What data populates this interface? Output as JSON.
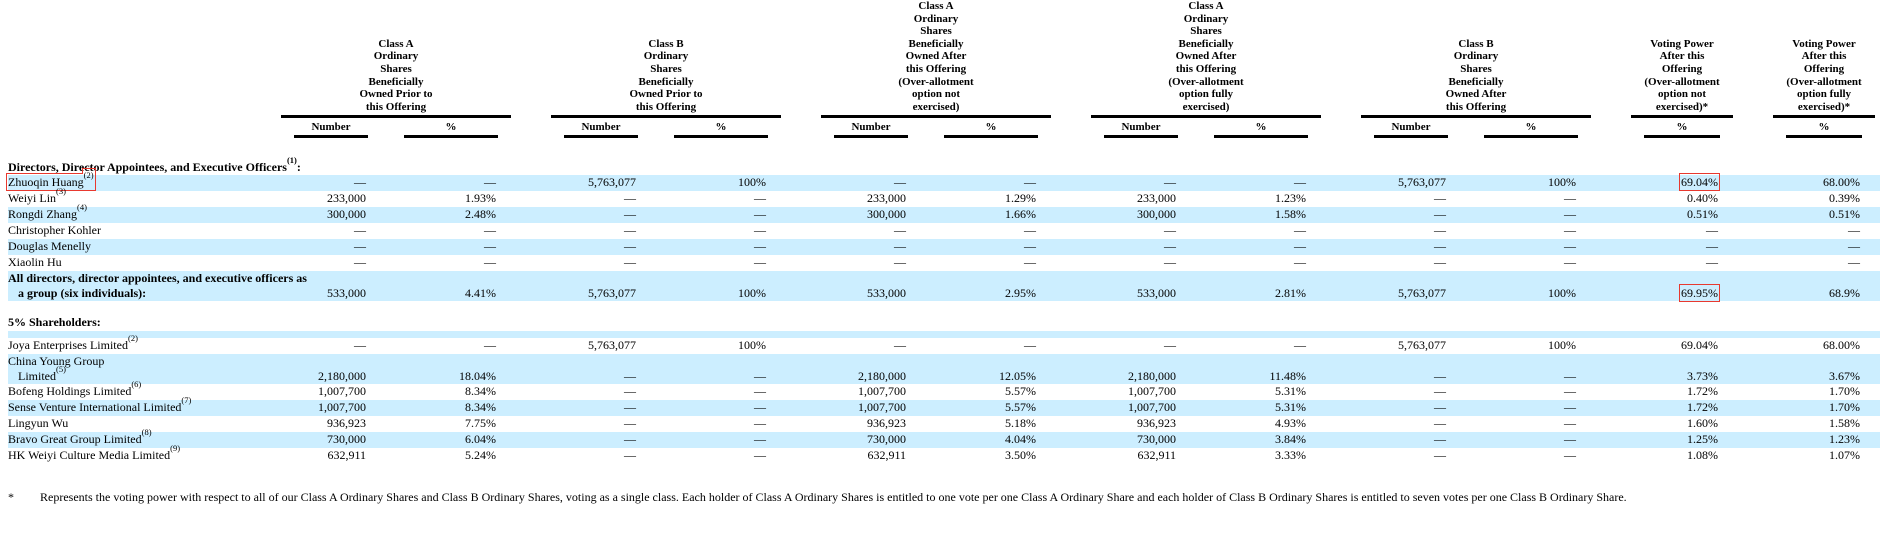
{
  "colors": {
    "row_highlight": "#cceeff",
    "annotation_red": "#e8392f",
    "rule": "#000000",
    "text": "#000000"
  },
  "table": {
    "groups": [
      {
        "title": "Class A\nOrdinary\nShares\nBeneficially\nOwned Prior to\nthis Offering",
        "cols": [
          "Number",
          "%"
        ]
      },
      {
        "title": "Class B\nOrdinary\nShares\nBeneficially\nOwned Prior to\nthis Offering",
        "cols": [
          "Number",
          "%"
        ]
      },
      {
        "title": "Class A\nOrdinary\nShares\nBeneficially\nOwned After\nthis Offering\n(Over-allotment\noption not\nexercised)",
        "cols": [
          "Number",
          "%"
        ]
      },
      {
        "title": "Class A\nOrdinary\nShares\nBeneficially\nOwned After\nthis Offering\n(Over-allotment\noption fully\nexercised)",
        "cols": [
          "Number",
          "%"
        ]
      },
      {
        "title": "Class B\nOrdinary\nShares\nBeneficially\nOwned After\nthis Offering",
        "cols": [
          "Number",
          "%"
        ]
      },
      {
        "title": "Voting Power\nAfter this\nOffering\n(Over-allotment\noption not\nexercised)*",
        "cols": [
          "%"
        ]
      },
      {
        "title": "Voting Power\nAfter this\nOffering\n(Over-allotment\noption fully\nexercised)*",
        "cols": [
          "%"
        ]
      }
    ],
    "rows": [
      {
        "type": "section",
        "label": "Directors, Director Appointees, and Executive Officers",
        "sup": "(1)",
        "suffix": ":"
      },
      {
        "type": "data",
        "label": "Zhuoqin Huang",
        "sup": "(2)",
        "highlight": true,
        "label_boxed": true,
        "boxed_values": [
          10
        ],
        "values": [
          "—",
          "—",
          "5,763,077",
          "100%",
          "—",
          "—",
          "—",
          "—",
          "5,763,077",
          "100%",
          "69.04%",
          "68.00%"
        ]
      },
      {
        "type": "data",
        "label": "Weiyi Lin",
        "sup": "(3)",
        "values": [
          "233,000",
          "1.93%",
          "—",
          "—",
          "233,000",
          "1.29%",
          "233,000",
          "1.23%",
          "—",
          "—",
          "0.40%",
          "0.39%"
        ]
      },
      {
        "type": "data",
        "label": "Rongdi Zhang",
        "sup": "(4)",
        "highlight": true,
        "values": [
          "300,000",
          "2.48%",
          "—",
          "—",
          "300,000",
          "1.66%",
          "300,000",
          "1.58%",
          "—",
          "—",
          "0.51%",
          "0.51%"
        ]
      },
      {
        "type": "data",
        "label": "Christopher Kohler",
        "values": [
          "—",
          "—",
          "—",
          "—",
          "—",
          "—",
          "—",
          "—",
          "—",
          "—",
          "—",
          "—"
        ]
      },
      {
        "type": "data",
        "label": "Douglas Menelly",
        "highlight": true,
        "values": [
          "—",
          "—",
          "—",
          "—",
          "—",
          "—",
          "—",
          "—",
          "—",
          "—",
          "—",
          "—"
        ]
      },
      {
        "type": "data",
        "label": "Xiaolin Hu",
        "values": [
          "—",
          "—",
          "—",
          "—",
          "—",
          "—",
          "—",
          "—",
          "—",
          "—",
          "—",
          "—"
        ]
      },
      {
        "type": "data",
        "label_lines": [
          "All directors, director appointees, and executive officers as",
          "a group (six individuals):"
        ],
        "bold": true,
        "highlight": true,
        "boxed_values": [
          10
        ],
        "values": [
          "533,000",
          "4.41%",
          "5,763,077",
          "100%",
          "533,000",
          "2.95%",
          "533,000",
          "2.81%",
          "5,763,077",
          "100%",
          "69.95%",
          "68.9%"
        ]
      },
      {
        "type": "spacer",
        "height": 14
      },
      {
        "type": "section",
        "label": "5% Shareholders",
        "suffix": ":"
      },
      {
        "type": "spacer",
        "height": 7,
        "highlight": true
      },
      {
        "type": "data",
        "label": "Joya Enterprises Limited",
        "sup": "(2)",
        "values": [
          "—",
          "—",
          "5,763,077",
          "100%",
          "—",
          "—",
          "—",
          "—",
          "5,763,077",
          "100%",
          "69.04%",
          "68.00%"
        ]
      },
      {
        "type": "data",
        "label_lines": [
          "China Young Group",
          "Limited"
        ],
        "sup": "(5)",
        "highlight": true,
        "values": [
          "2,180,000",
          "18.04%",
          "—",
          "—",
          "2,180,000",
          "12.05%",
          "2,180,000",
          "11.48%",
          "—",
          "—",
          "3.73%",
          "3.67%"
        ]
      },
      {
        "type": "data",
        "label": "Bofeng Holdings Limited",
        "sup": "(6)",
        "values": [
          "1,007,700",
          "8.34%",
          "—",
          "—",
          "1,007,700",
          "5.57%",
          "1,007,700",
          "5.31%",
          "—",
          "—",
          "1.72%",
          "1.70%"
        ]
      },
      {
        "type": "data",
        "label": "Sense Venture International Limited",
        "sup": "(7)",
        "highlight": true,
        "values": [
          "1,007,700",
          "8.34%",
          "—",
          "—",
          "1,007,700",
          "5.57%",
          "1,007,700",
          "5.31%",
          "—",
          "—",
          "1.72%",
          "1.70%"
        ]
      },
      {
        "type": "data",
        "label": "Lingyun Wu",
        "values": [
          "936,923",
          "7.75%",
          "—",
          "—",
          "936,923",
          "5.18%",
          "936,923",
          "4.93%",
          "—",
          "—",
          "1.60%",
          "1.58%"
        ]
      },
      {
        "type": "data",
        "label": "Bravo Great Group Limited",
        "sup": "(8)",
        "highlight": true,
        "values": [
          "730,000",
          "6.04%",
          "—",
          "—",
          "730,000",
          "4.04%",
          "730,000",
          "3.84%",
          "—",
          "—",
          "1.25%",
          "1.23%"
        ]
      },
      {
        "type": "data",
        "label": "HK Weiyi Culture Media Limited",
        "sup": "(9)",
        "values": [
          "632,911",
          "5.24%",
          "—",
          "—",
          "632,911",
          "3.50%",
          "632,911",
          "3.33%",
          "—",
          "—",
          "1.08%",
          "1.07%"
        ]
      }
    ]
  },
  "footnote": {
    "symbol": "*",
    "text": "Represents the voting power with respect to all of our Class A Ordinary Shares and Class B Ordinary Shares, voting as a single class. Each holder of Class A Ordinary Shares is entitled to one vote per one Class A Ordinary Share and each holder of Class B Ordinary Shares is entitled to seven votes per one Class B Ordinary Share."
  }
}
